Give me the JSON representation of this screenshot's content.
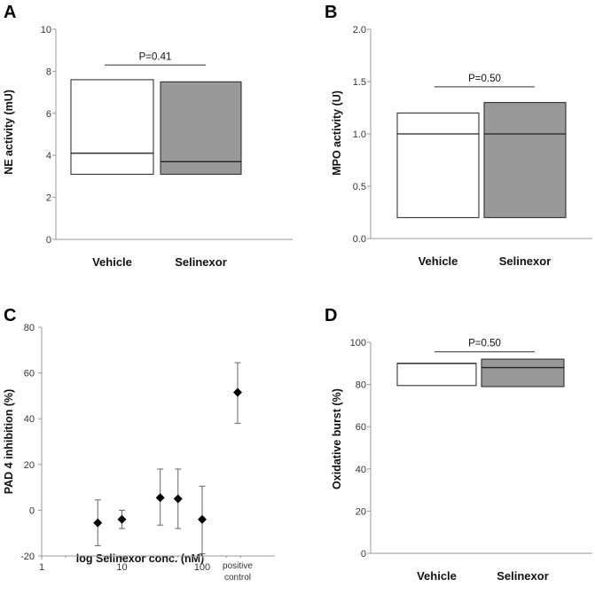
{
  "colors": {
    "axis": "#999999",
    "box_stroke": "#222222",
    "vehicle_fill": "#ffffff",
    "selinexor_fill": "#999999",
    "marker": "#000000",
    "errorbar": "#666666"
  },
  "chart_data": [
    {
      "panel": "A",
      "type": "box",
      "categories": [
        "Vehicle",
        "Selinexor"
      ],
      "ylabel": "NE activity (mU)",
      "ylim": [
        0,
        10
      ],
      "yticks": [
        "0",
        "2",
        "4",
        "6",
        "8",
        "10"
      ],
      "boxes": [
        {
          "low": 3.1,
          "median": 4.1,
          "high": 7.6
        },
        {
          "low": 3.1,
          "median": 3.7,
          "high": 7.5
        }
      ],
      "annotation": "P=0.41",
      "annotation_y": 8.3
    },
    {
      "panel": "B",
      "type": "box",
      "categories": [
        "Vehicle",
        "Selinexor"
      ],
      "ylabel": "MPO activity (U)",
      "ylim": [
        0,
        2
      ],
      "yticks": [
        "0.0",
        "0.5",
        "1.0",
        "1.5",
        "2.0"
      ],
      "boxes": [
        {
          "low": 0.2,
          "median": 1.0,
          "high": 1.2
        },
        {
          "low": 0.2,
          "median": 1.0,
          "high": 1.3
        }
      ],
      "annotation": "P=0.50",
      "annotation_y": 1.45
    },
    {
      "panel": "C",
      "type": "scatter",
      "xlabel": "log Selinexor conc. (nM)",
      "ylabel": "PAD 4 inhibition (%)",
      "xscale": "log",
      "xlim": [
        1,
        300
      ],
      "ylim": [
        -20,
        80
      ],
      "yticks": [
        "-20",
        "0",
        "20",
        "40",
        "60",
        "80"
      ],
      "xticks": [
        "1",
        "10",
        "100"
      ],
      "extra_xtick": "positive control",
      "points": [
        {
          "x": 5,
          "y": -5.5,
          "err_low": -15.5,
          "err_high": 4.5
        },
        {
          "x": 10,
          "y": -4,
          "err_low": -8,
          "err_high": 0
        },
        {
          "x": 30,
          "y": 5.5,
          "err_low": -6.5,
          "err_high": 18
        },
        {
          "x": 50,
          "y": 5,
          "err_low": -8,
          "err_high": 18
        },
        {
          "x": 100,
          "y": -4,
          "err_low": -19,
          "err_high": 10.5
        },
        {
          "x": "positive control",
          "y": 51.5,
          "err_low": 38,
          "err_high": 64.5
        }
      ]
    },
    {
      "panel": "D",
      "type": "box",
      "categories": [
        "Vehicle",
        "Selinexor"
      ],
      "ylabel": "Oxidative burst (%)",
      "ylim": [
        0,
        100
      ],
      "yticks": [
        "0",
        "20",
        "40",
        "60",
        "80",
        "100"
      ],
      "boxes": [
        {
          "low": 79.5,
          "median": 90,
          "high": 90
        },
        {
          "low": 79,
          "median": 88,
          "high": 92
        }
      ],
      "annotation": "P=0.50",
      "annotation_y": 95.5
    }
  ]
}
